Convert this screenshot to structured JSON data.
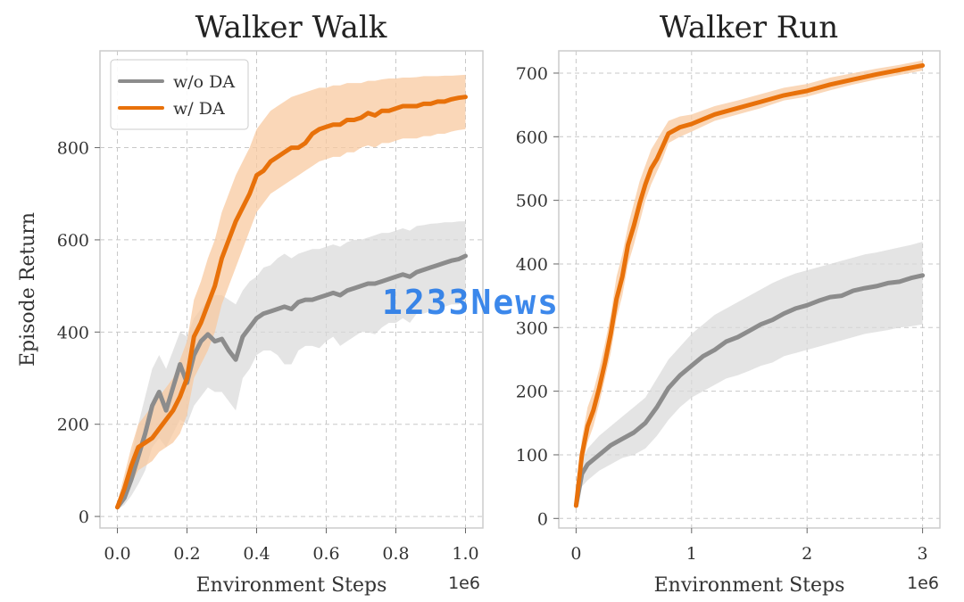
{
  "watermark": "1233News",
  "colors": {
    "without_da": "#8c8c8c",
    "without_da_band": "#d9d9d9",
    "with_da": "#e8710a",
    "with_da_band": "#f8c9a0",
    "grid": "#c8c8c8",
    "frame": "#cccccc"
  },
  "chart_data": [
    {
      "type": "line",
      "title": "Walker Walk",
      "xlabel": "Environment Steps",
      "ylabel": "Episode Return",
      "x_offset_label": "1e6",
      "xlim": [
        -0.05,
        1.05
      ],
      "ylim": [
        -25,
        1010
      ],
      "xticks": [
        0.0,
        0.2,
        0.4,
        0.6,
        0.8,
        1.0
      ],
      "xtick_labels": [
        "0.0",
        "0.2",
        "0.4",
        "0.6",
        "0.8",
        "1.0"
      ],
      "yticks": [
        0,
        200,
        400,
        600,
        800
      ],
      "ytick_labels": [
        "0",
        "200",
        "400",
        "600",
        "800"
      ],
      "grid": true,
      "legend": {
        "position": "top-left",
        "entries": [
          "w/o DA",
          "w/ DA"
        ]
      },
      "series": [
        {
          "name": "w/o DA",
          "x": [
            0.0,
            0.02,
            0.04,
            0.06,
            0.08,
            0.1,
            0.12,
            0.14,
            0.16,
            0.18,
            0.2,
            0.22,
            0.24,
            0.26,
            0.28,
            0.3,
            0.32,
            0.34,
            0.36,
            0.38,
            0.4,
            0.42,
            0.44,
            0.46,
            0.48,
            0.5,
            0.52,
            0.54,
            0.56,
            0.58,
            0.6,
            0.62,
            0.64,
            0.66,
            0.68,
            0.7,
            0.72,
            0.74,
            0.76,
            0.78,
            0.8,
            0.82,
            0.84,
            0.86,
            0.88,
            0.9,
            0.92,
            0.94,
            0.96,
            0.98,
            1.0
          ],
          "y": [
            20,
            40,
            80,
            130,
            180,
            240,
            270,
            230,
            280,
            330,
            290,
            350,
            380,
            395,
            380,
            385,
            360,
            340,
            390,
            410,
            430,
            440,
            445,
            450,
            455,
            450,
            465,
            470,
            470,
            475,
            480,
            485,
            480,
            490,
            495,
            500,
            505,
            505,
            510,
            515,
            520,
            525,
            520,
            530,
            535,
            540,
            545,
            550,
            555,
            558,
            565
          ],
          "lower": [
            15,
            25,
            45,
            70,
            100,
            150,
            170,
            150,
            180,
            210,
            200,
            240,
            260,
            280,
            270,
            270,
            250,
            230,
            300,
            320,
            350,
            360,
            360,
            350,
            330,
            330,
            360,
            370,
            370,
            365,
            380,
            390,
            370,
            380,
            390,
            400,
            400,
            395,
            410,
            420,
            420,
            430,
            420,
            440,
            440,
            445,
            450,
            455,
            460,
            460,
            470
          ],
          "upper": [
            30,
            70,
            130,
            200,
            260,
            320,
            350,
            320,
            360,
            400,
            390,
            430,
            450,
            470,
            480,
            480,
            470,
            460,
            490,
            510,
            520,
            540,
            545,
            560,
            570,
            560,
            570,
            575,
            580,
            580,
            585,
            590,
            585,
            595,
            600,
            600,
            605,
            610,
            615,
            615,
            620,
            625,
            620,
            630,
            632,
            635,
            636,
            638,
            638,
            640,
            640
          ]
        },
        {
          "name": "w/ DA",
          "x": [
            0.0,
            0.02,
            0.04,
            0.06,
            0.08,
            0.1,
            0.12,
            0.14,
            0.16,
            0.18,
            0.2,
            0.22,
            0.24,
            0.26,
            0.28,
            0.3,
            0.32,
            0.34,
            0.36,
            0.38,
            0.4,
            0.42,
            0.44,
            0.46,
            0.48,
            0.5,
            0.52,
            0.54,
            0.56,
            0.58,
            0.6,
            0.62,
            0.64,
            0.66,
            0.68,
            0.7,
            0.72,
            0.74,
            0.76,
            0.78,
            0.8,
            0.82,
            0.84,
            0.86,
            0.88,
            0.9,
            0.92,
            0.94,
            0.96,
            0.98,
            1.0
          ],
          "y": [
            20,
            60,
            110,
            150,
            160,
            170,
            190,
            210,
            230,
            260,
            300,
            390,
            420,
            460,
            500,
            560,
            600,
            640,
            670,
            700,
            740,
            750,
            770,
            780,
            790,
            800,
            800,
            810,
            830,
            840,
            845,
            850,
            850,
            860,
            860,
            865,
            875,
            870,
            880,
            880,
            885,
            890,
            890,
            890,
            895,
            895,
            900,
            900,
            905,
            908,
            910
          ],
          "lower": [
            15,
            35,
            70,
            100,
            110,
            120,
            140,
            150,
            160,
            180,
            220,
            300,
            330,
            360,
            400,
            460,
            500,
            540,
            580,
            620,
            660,
            680,
            700,
            710,
            720,
            730,
            740,
            750,
            760,
            770,
            775,
            780,
            780,
            790,
            790,
            800,
            805,
            800,
            810,
            810,
            815,
            820,
            820,
            820,
            825,
            825,
            830,
            830,
            835,
            838,
            840
          ],
          "upper": [
            30,
            90,
            150,
            200,
            220,
            240,
            260,
            280,
            300,
            340,
            380,
            470,
            510,
            560,
            600,
            660,
            700,
            740,
            770,
            800,
            840,
            860,
            880,
            890,
            900,
            910,
            915,
            920,
            925,
            930,
            930,
            935,
            935,
            940,
            940,
            940,
            945,
            945,
            948,
            950,
            950,
            952,
            952,
            953,
            955,
            955,
            955,
            956,
            956,
            957,
            958
          ]
        }
      ]
    },
    {
      "type": "line",
      "title": "Walker Run",
      "xlabel": "Environment Steps",
      "ylabel": "",
      "x_offset_label": "1e6",
      "xlim": [
        -0.15,
        3.15
      ],
      "ylim": [
        -15,
        735
      ],
      "xticks": [
        0,
        1,
        2,
        3
      ],
      "xtick_labels": [
        "0",
        "1",
        "2",
        "3"
      ],
      "yticks": [
        0,
        100,
        200,
        300,
        400,
        500,
        600,
        700
      ],
      "ytick_labels": [
        "0",
        "100",
        "200",
        "300",
        "400",
        "500",
        "600",
        "700"
      ],
      "grid": true,
      "legend": null,
      "series": [
        {
          "name": "w/o DA",
          "x": [
            0.0,
            0.05,
            0.1,
            0.2,
            0.3,
            0.4,
            0.5,
            0.6,
            0.7,
            0.8,
            0.9,
            1.0,
            1.1,
            1.2,
            1.3,
            1.4,
            1.5,
            1.6,
            1.7,
            1.8,
            1.9,
            2.0,
            2.1,
            2.2,
            2.3,
            2.4,
            2.5,
            2.6,
            2.7,
            2.8,
            2.9,
            3.0
          ],
          "y": [
            20,
            70,
            85,
            100,
            115,
            125,
            135,
            150,
            175,
            205,
            225,
            240,
            255,
            265,
            278,
            285,
            295,
            305,
            312,
            322,
            330,
            335,
            342,
            348,
            350,
            358,
            362,
            365,
            370,
            372,
            378,
            382
          ],
          "lower": [
            15,
            50,
            60,
            75,
            85,
            95,
            100,
            110,
            130,
            155,
            175,
            190,
            200,
            210,
            220,
            225,
            232,
            240,
            245,
            255,
            260,
            265,
            270,
            275,
            280,
            285,
            290,
            293,
            296,
            300,
            302,
            305
          ],
          "upper": [
            30,
            90,
            110,
            130,
            145,
            160,
            175,
            190,
            220,
            250,
            270,
            290,
            305,
            320,
            330,
            340,
            350,
            360,
            370,
            378,
            385,
            390,
            395,
            400,
            405,
            410,
            415,
            418,
            422,
            426,
            430,
            435
          ]
        },
        {
          "name": "w/ DA",
          "x": [
            0.0,
            0.05,
            0.1,
            0.15,
            0.2,
            0.25,
            0.3,
            0.35,
            0.4,
            0.45,
            0.5,
            0.55,
            0.6,
            0.65,
            0.7,
            0.75,
            0.8,
            0.9,
            1.0,
            1.2,
            1.4,
            1.6,
            1.8,
            2.0,
            2.2,
            2.4,
            2.6,
            2.8,
            3.0
          ],
          "y": [
            20,
            100,
            145,
            170,
            205,
            245,
            290,
            345,
            380,
            430,
            460,
            495,
            525,
            550,
            565,
            585,
            605,
            615,
            620,
            635,
            645,
            655,
            665,
            672,
            682,
            690,
            698,
            705,
            712
          ],
          "lower": [
            15,
            80,
            120,
            145,
            180,
            220,
            260,
            315,
            350,
            400,
            430,
            465,
            500,
            525,
            545,
            565,
            590,
            600,
            608,
            625,
            635,
            645,
            657,
            663,
            673,
            682,
            690,
            697,
            704
          ],
          "upper": [
            30,
            125,
            175,
            200,
            235,
            275,
            320,
            380,
            415,
            460,
            495,
            530,
            555,
            580,
            595,
            610,
            625,
            632,
            635,
            648,
            657,
            667,
            677,
            683,
            693,
            700,
            707,
            713,
            720
          ]
        }
      ]
    }
  ]
}
